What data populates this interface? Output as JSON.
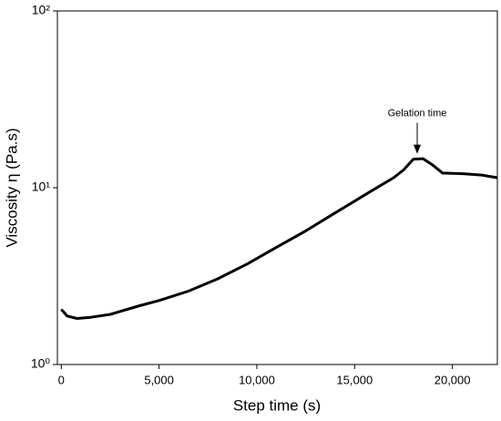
{
  "chart_data": {
    "type": "line",
    "xlabel": "Step time (s)",
    "ylabel": "Viscosity η (Pa.s)",
    "x": [
      0,
      300,
      800,
      1500,
      2500,
      4000,
      5000,
      6500,
      8000,
      9500,
      11000,
      12500,
      14000,
      15000,
      16000,
      17000,
      17500,
      18000,
      18500,
      19000,
      19500,
      20500,
      21500,
      22300
    ],
    "series": [
      {
        "color": "#000000",
        "values": [
          2.05,
          1.88,
          1.82,
          1.85,
          1.92,
          2.15,
          2.3,
          2.6,
          3.05,
          3.7,
          4.6,
          5.7,
          7.2,
          8.4,
          9.8,
          11.4,
          12.6,
          14.5,
          14.6,
          13.4,
          12.1,
          12.0,
          11.8,
          11.4
        ]
      }
    ],
    "xlim": [
      -200,
      22300
    ],
    "xticks": [
      0,
      {
        "value": 5000,
        "label": "5,000"
      },
      {
        "value": 10000,
        "label": "10,000"
      },
      {
        "value": 15000,
        "label": "15,000"
      },
      {
        "value": 20000,
        "label": "20,000"
      }
    ],
    "ylim": [
      1,
      100
    ],
    "yticks": [
      {
        "value": 1,
        "label": "10⁰"
      },
      {
        "value": 10,
        "label": "10¹"
      },
      {
        "value": 100,
        "label": "10²"
      }
    ],
    "log_y": true,
    "annotations": [
      {
        "text": "Gelation time",
        "x": 18200,
        "y": 14.5
      }
    ]
  }
}
